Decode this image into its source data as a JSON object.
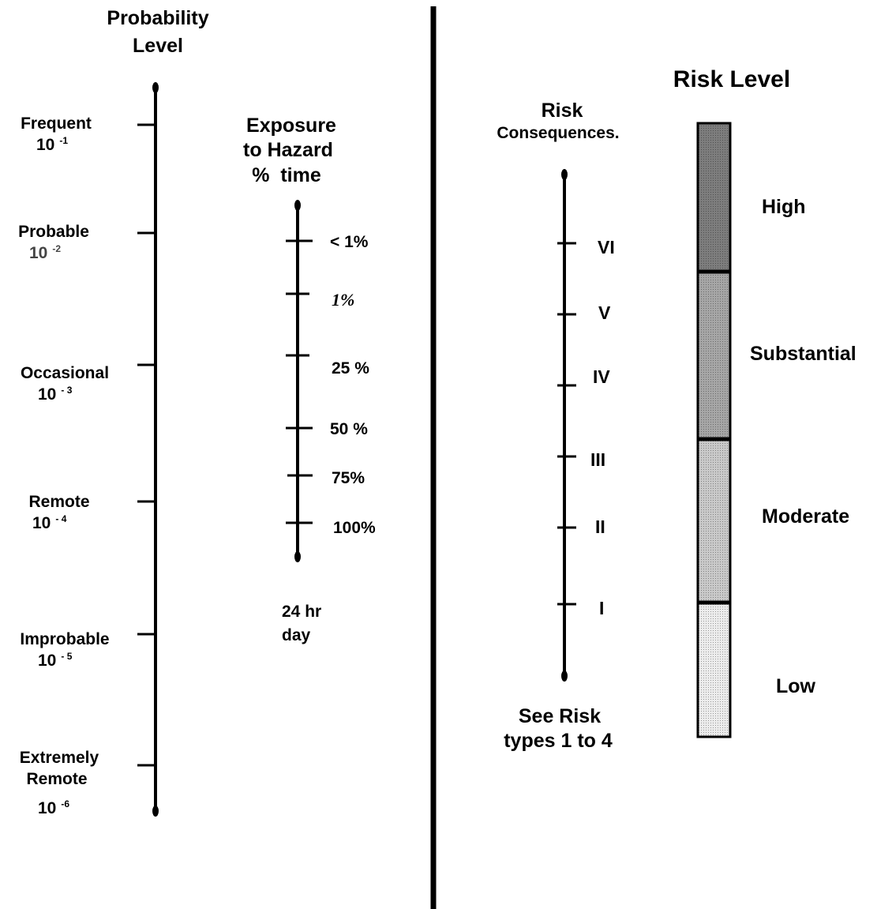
{
  "probability": {
    "title_line1": "Probability",
    "title_line2": "Level",
    "levels": [
      {
        "name": "Frequent",
        "base": "10",
        "exp": "-1"
      },
      {
        "name": "Probable",
        "base": "10",
        "exp": "-2"
      },
      {
        "name": "Occasional",
        "base": "10",
        "exp": "- 3"
      },
      {
        "name": "Remote",
        "base": "10",
        "exp": "- 4"
      },
      {
        "name": "Improbable",
        "base": "10",
        "exp": "- 5"
      },
      {
        "name_line1": "Extremely",
        "name_line2": "Remote",
        "base": "10",
        "exp": "-6"
      }
    ]
  },
  "exposure": {
    "title_line1": "Exposure",
    "title_line2": "to Hazard",
    "title_line3": "%  time",
    "ticks": [
      "< 1%",
      "1%",
      "25 %",
      "50 %",
      "75%",
      "100%"
    ],
    "footer_line1": "24 hr",
    "footer_line2": "day"
  },
  "consequences": {
    "title_line1": "Risk",
    "title_line2": "Consequences.",
    "ticks": [
      "VI",
      "V",
      "IV",
      "III",
      "II",
      "I"
    ],
    "footer_line1": "See Risk",
    "footer_line2": "types 1 to 4"
  },
  "risk_level": {
    "title": "Risk Level",
    "bands": [
      {
        "label": "High",
        "color": "#7d7d7d"
      },
      {
        "label": "Substantial",
        "color": "#a6a6a6"
      },
      {
        "label": "Moderate",
        "color": "#c9c9c9"
      },
      {
        "label": "Low",
        "color": "#ececec"
      }
    ]
  }
}
